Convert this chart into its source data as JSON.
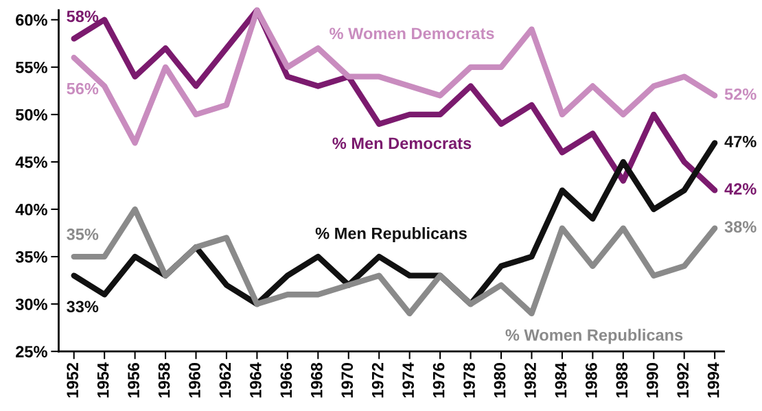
{
  "chart_data": {
    "type": "line",
    "x": [
      1952,
      1954,
      1956,
      1958,
      1960,
      1962,
      1964,
      1966,
      1968,
      1970,
      1972,
      1974,
      1976,
      1978,
      1980,
      1982,
      1984,
      1986,
      1988,
      1990,
      1992,
      1994
    ],
    "series": [
      {
        "name": "% Men Democrats",
        "color": "#7b1a6e",
        "values": [
          58,
          60,
          54,
          57,
          53,
          57,
          61,
          54,
          53,
          54,
          49,
          50,
          50,
          53,
          49,
          51,
          46,
          48,
          43,
          50,
          45,
          42
        ],
        "value_labels": [
          "58%",
          null,
          null,
          null,
          null,
          null,
          null,
          null,
          null,
          null,
          null,
          null,
          null,
          null,
          null,
          null,
          null,
          null,
          null,
          null,
          null,
          "42%"
        ]
      },
      {
        "name": "% Women Democrats",
        "color": "#c98cbf",
        "values": [
          56,
          53,
          47,
          55,
          50,
          51,
          61,
          55,
          57,
          54,
          54,
          53,
          52,
          55,
          55,
          59,
          50,
          53,
          50,
          53,
          54,
          52
        ],
        "value_labels": [
          "56%",
          null,
          null,
          null,
          null,
          null,
          null,
          null,
          null,
          null,
          null,
          null,
          null,
          null,
          null,
          null,
          null,
          null,
          null,
          null,
          null,
          "52%"
        ]
      },
      {
        "name": "% Men Republicans",
        "color": "#111111",
        "values": [
          33,
          31,
          35,
          33,
          36,
          32,
          30,
          33,
          35,
          32,
          35,
          33,
          33,
          30,
          34,
          35,
          42,
          39,
          45,
          40,
          42,
          47
        ],
        "value_labels": [
          "33%",
          null,
          null,
          null,
          null,
          null,
          null,
          null,
          null,
          null,
          null,
          null,
          null,
          null,
          null,
          null,
          null,
          null,
          null,
          null,
          null,
          "47%"
        ]
      },
      {
        "name": "% Women Republicans",
        "color": "#8a8a8a",
        "values": [
          35,
          35,
          40,
          33,
          36,
          37,
          30,
          31,
          31,
          32,
          33,
          29,
          33,
          30,
          32,
          29,
          38,
          34,
          38,
          33,
          34,
          38
        ],
        "value_labels": [
          "35%",
          null,
          null,
          null,
          null,
          null,
          null,
          null,
          null,
          null,
          null,
          null,
          null,
          null,
          null,
          null,
          null,
          null,
          null,
          null,
          null,
          "38%"
        ]
      }
    ],
    "xlim": [
      1951,
      1994.6
    ],
    "ylim": [
      25,
      61
    ],
    "xticks": [
      1952,
      1954,
      1956,
      1958,
      1960,
      1962,
      1964,
      1966,
      1968,
      1970,
      1972,
      1974,
      1976,
      1978,
      1980,
      1982,
      1984,
      1986,
      1988,
      1990,
      1992,
      1994
    ],
    "yticks": [
      {
        "value": 25,
        "label": "25%"
      },
      {
        "value": 30,
        "label": "30%"
      },
      {
        "value": 35,
        "label": "35%"
      },
      {
        "value": 40,
        "label": "40%"
      },
      {
        "value": 45,
        "label": "45%"
      },
      {
        "value": 50,
        "label": "50%"
      },
      {
        "value": 55,
        "label": "55%"
      },
      {
        "value": 60,
        "label": "60%"
      }
    ],
    "grid": false,
    "legend": false,
    "marker": "none",
    "line_style": "solid"
  }
}
